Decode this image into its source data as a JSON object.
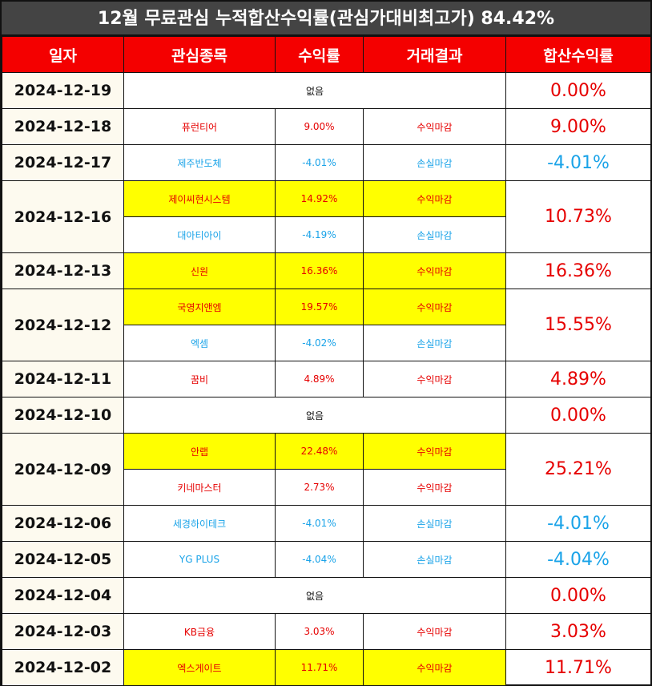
{
  "title": "12월 무료관심 누적합산수익률(관심가대비최고가) 84.42%",
  "headers": [
    "일자",
    "관심종목",
    "수익률",
    "거래결과",
    "합산수익률"
  ],
  "none_label": "없음",
  "colors": {
    "title_bg": "#444444",
    "header_bg": "#f40000",
    "highlight": "#ffff00",
    "profit": "#e60000",
    "loss": "#1aa3e8"
  },
  "rows": [
    {
      "date": "2024-12-19",
      "total": "0.00%",
      "total_type": "profit",
      "items": []
    },
    {
      "date": "2024-12-18",
      "total": "9.00%",
      "total_type": "profit",
      "items": [
        {
          "stock": "퓨런티어",
          "ret": "9.00%",
          "result": "수익마감",
          "type": "profit",
          "hl": false
        }
      ]
    },
    {
      "date": "2024-12-17",
      "total": "-4.01%",
      "total_type": "loss",
      "items": [
        {
          "stock": "제주반도체",
          "ret": "-4.01%",
          "result": "손실마감",
          "type": "loss",
          "hl": false
        }
      ]
    },
    {
      "date": "2024-12-16",
      "total": "10.73%",
      "total_type": "profit",
      "items": [
        {
          "stock": "제이씨현시스템",
          "ret": "14.92%",
          "result": "수익마감",
          "type": "profit",
          "hl": true
        },
        {
          "stock": "대아티아이",
          "ret": "-4.19%",
          "result": "손실마감",
          "type": "loss",
          "hl": false
        }
      ]
    },
    {
      "date": "2024-12-13",
      "total": "16.36%",
      "total_type": "profit",
      "items": [
        {
          "stock": "신원",
          "ret": "16.36%",
          "result": "수익마감",
          "type": "profit",
          "hl": true
        }
      ]
    },
    {
      "date": "2024-12-12",
      "total": "15.55%",
      "total_type": "profit",
      "items": [
        {
          "stock": "국영지앤엠",
          "ret": "19.57%",
          "result": "수익마감",
          "type": "profit",
          "hl": true
        },
        {
          "stock": "엑셈",
          "ret": "-4.02%",
          "result": "손실마감",
          "type": "loss",
          "hl": false
        }
      ]
    },
    {
      "date": "2024-12-11",
      "total": "4.89%",
      "total_type": "profit",
      "items": [
        {
          "stock": "꿈비",
          "ret": "4.89%",
          "result": "수익마감",
          "type": "profit",
          "hl": false
        }
      ]
    },
    {
      "date": "2024-12-10",
      "total": "0.00%",
      "total_type": "profit",
      "items": []
    },
    {
      "date": "2024-12-09",
      "total": "25.21%",
      "total_type": "profit",
      "items": [
        {
          "stock": "안랩",
          "ret": "22.48%",
          "result": "수익마감",
          "type": "profit",
          "hl": true
        },
        {
          "stock": "키네마스터",
          "ret": "2.73%",
          "result": "수익마감",
          "type": "profit",
          "hl": false
        }
      ]
    },
    {
      "date": "2024-12-06",
      "total": "-4.01%",
      "total_type": "loss",
      "items": [
        {
          "stock": "세경하이테크",
          "ret": "-4.01%",
          "result": "손실마감",
          "type": "loss",
          "hl": false
        }
      ]
    },
    {
      "date": "2024-12-05",
      "total": "-4.04%",
      "total_type": "loss",
      "items": [
        {
          "stock": "YG PLUS",
          "ret": "-4.04%",
          "result": "손실마감",
          "type": "loss",
          "hl": false
        }
      ]
    },
    {
      "date": "2024-12-04",
      "total": "0.00%",
      "total_type": "profit",
      "items": []
    },
    {
      "date": "2024-12-03",
      "total": "3.03%",
      "total_type": "profit",
      "items": [
        {
          "stock": "KB금융",
          "ret": "3.03%",
          "result": "수익마감",
          "type": "profit",
          "hl": false
        }
      ]
    },
    {
      "date": "2024-12-02",
      "total": "11.71%",
      "total_type": "profit",
      "items": [
        {
          "stock": "엑스게이트",
          "ret": "11.71%",
          "result": "수익마감",
          "type": "profit",
          "hl": true
        }
      ]
    }
  ]
}
